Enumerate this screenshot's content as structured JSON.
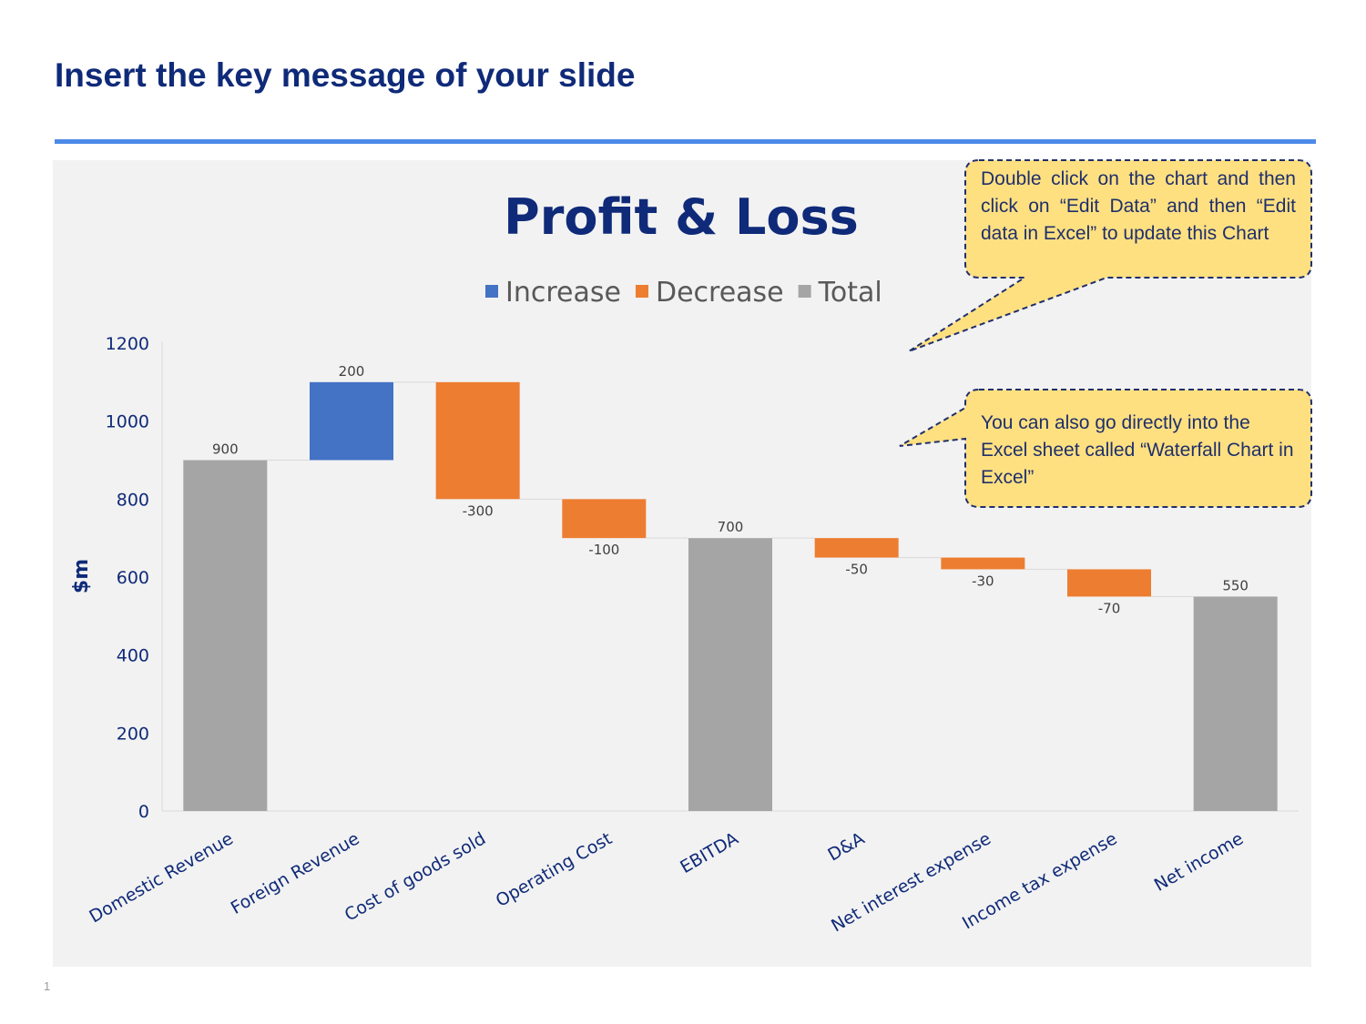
{
  "slide": {
    "title": "Insert the key message of your slide",
    "page_number": "1"
  },
  "callouts": [
    {
      "text": "Double click on the chart and then click on “Edit Data” and then “Edit data in Excel” to update this Chart"
    },
    {
      "text": "You can also go directly into the Excel sheet called “Waterfall Chart in Excel”"
    }
  ],
  "colors": {
    "increase": "#4472c4",
    "decrease": "#ed7d31",
    "total": "#a5a5a5",
    "title": "#0f2a78",
    "accent_rule": "#4d8ae8",
    "callout_fill": "#ffe081"
  },
  "chart_data": {
    "type": "bar",
    "subtype": "waterfall",
    "title": "Profit & Loss",
    "ylabel": "$m",
    "xlabel": "",
    "ylim": [
      0,
      1200
    ],
    "yticks": [
      0,
      200,
      400,
      600,
      800,
      1000,
      1200
    ],
    "legend": {
      "placement": "top",
      "entries": [
        {
          "name": "Increase",
          "color": "#4472c4"
        },
        {
          "name": "Decrease",
          "color": "#ed7d31"
        },
        {
          "name": "Total",
          "color": "#a5a5a5"
        }
      ]
    },
    "grid": false,
    "categories": [
      "Domestic Revenue",
      "Foreign Revenue",
      "Cost of goods sold",
      "Operating Cost",
      "EBITDA",
      "D&A",
      "Net interest expense",
      "Income tax expense",
      "Net income"
    ],
    "values": [
      900,
      200,
      -300,
      -100,
      700,
      -50,
      -30,
      -70,
      550
    ],
    "kinds": [
      "total",
      "increase",
      "decrease",
      "decrease",
      "total",
      "decrease",
      "decrease",
      "decrease",
      "total"
    ],
    "data_labels": [
      "900",
      "200",
      "-300",
      "-100",
      "700",
      "-50",
      "-30",
      "-70",
      "550"
    ]
  }
}
